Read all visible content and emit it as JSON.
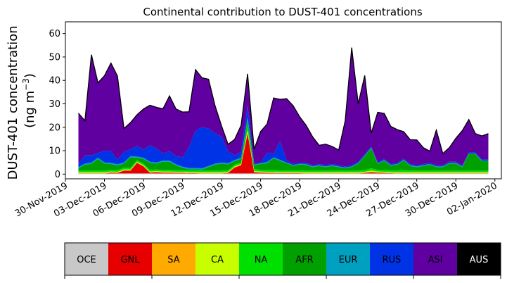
{
  "chart_data": {
    "type": "area",
    "title": "Continental contribution to DUST-401 concentrations",
    "ylabel_line1": "DUST-401 concentration",
    "ylabel_line2": "(ng m",
    "ylabel_unit_sup": "−3",
    "ylabel_line2_end": ")",
    "xlabel": "",
    "ylim": [
      -2,
      65
    ],
    "yticks": [
      0,
      10,
      20,
      30,
      40,
      50,
      60
    ],
    "xlim": [
      "2019-11-30T00:00",
      "2020-01-02T12:00"
    ],
    "xticks": [
      "2019-11-30",
      "2019-12-03",
      "2019-12-06",
      "2019-12-09",
      "2019-12-12",
      "2019-12-15",
      "2019-12-18",
      "2019-12-21",
      "2019-12-24",
      "2019-12-27",
      "2019-12-30",
      "2020-01-02"
    ],
    "xtick_labels": [
      "30-Nov-2019",
      "03-Dec-2019",
      "06-Dec-2019",
      "09-Dec-2019",
      "12-Dec-2019",
      "15-Dec-2019",
      "18-Dec-2019",
      "21-Dec-2019",
      "24-Dec-2019",
      "27-Dec-2019",
      "30-Dec-2019",
      "02-Jan-2020"
    ],
    "grid": false,
    "legend_placement": "bottom colorbar",
    "x": [
      "2019-12-01T00:00",
      "2019-12-01T12:00",
      "2019-12-02T00:00",
      "2019-12-02T12:00",
      "2019-12-03T00:00",
      "2019-12-03T12:00",
      "2019-12-04T00:00",
      "2019-12-04T12:00",
      "2019-12-05T00:00",
      "2019-12-05T12:00",
      "2019-12-06T00:00",
      "2019-12-06T12:00",
      "2019-12-07T00:00",
      "2019-12-07T12:00",
      "2019-12-08T00:00",
      "2019-12-08T12:00",
      "2019-12-09T00:00",
      "2019-12-09T12:00",
      "2019-12-10T00:00",
      "2019-12-10T12:00",
      "2019-12-11T00:00",
      "2019-12-11T12:00",
      "2019-12-12T00:00",
      "2019-12-12T12:00",
      "2019-12-13T00:00",
      "2019-12-13T12:00",
      "2019-12-14T00:00",
      "2019-12-14T12:00",
      "2019-12-15T00:00",
      "2019-12-15T12:00",
      "2019-12-16T00:00",
      "2019-12-16T12:00",
      "2019-12-17T00:00",
      "2019-12-17T12:00",
      "2019-12-18T00:00",
      "2019-12-18T12:00",
      "2019-12-19T00:00",
      "2019-12-19T12:00",
      "2019-12-20T00:00",
      "2019-12-20T12:00",
      "2019-12-21T00:00",
      "2019-12-21T12:00",
      "2019-12-22T00:00",
      "2019-12-22T12:00",
      "2019-12-23T00:00",
      "2019-12-23T12:00",
      "2019-12-24T00:00",
      "2019-12-24T12:00",
      "2019-12-25T00:00",
      "2019-12-25T12:00",
      "2019-12-26T00:00",
      "2019-12-26T12:00",
      "2019-12-27T00:00",
      "2019-12-27T12:00",
      "2019-12-28T00:00",
      "2019-12-28T12:00",
      "2019-12-29T00:00",
      "2019-12-29T12:00",
      "2019-12-30T00:00",
      "2019-12-30T12:00",
      "2019-12-31T00:00",
      "2019-12-31T12:00",
      "2020-01-01T00:00",
      "2020-01-01T12:00"
    ],
    "series": [
      {
        "name": "OCE",
        "color": "#c8c8c8",
        "values": [
          0.3,
          0.3,
          0.3,
          0.3,
          0.3,
          0.3,
          0.3,
          0.3,
          0.3,
          0.3,
          0.3,
          0.3,
          0.3,
          0.3,
          0.3,
          0.3,
          0.3,
          0.3,
          0.3,
          0.3,
          0.3,
          0.3,
          0.3,
          0.3,
          0.3,
          0.3,
          0.3,
          0.3,
          0.3,
          0.3,
          0.3,
          0.3,
          0.3,
          0.3,
          0.3,
          0.3,
          0.3,
          0.3,
          0.3,
          0.3,
          0.3,
          0.3,
          0.3,
          0.3,
          0.3,
          0.3,
          0.3,
          0.3,
          0.3,
          0.3,
          0.3,
          0.3,
          0.3,
          0.3,
          0.3,
          0.3,
          0.3,
          0.3,
          0.3,
          0.3,
          0.3,
          0.3,
          0.3,
          0.3
        ]
      },
      {
        "name": "GNL",
        "color": "#e60000",
        "values": [
          0,
          0,
          0,
          0,
          0,
          0.3,
          0.2,
          1.2,
          1.2,
          4.5,
          3.0,
          0.3,
          0.5,
          0.3,
          0.3,
          0.2,
          0.2,
          0.1,
          0.1,
          0,
          0,
          0,
          0,
          0.2,
          2.5,
          3.5,
          17.0,
          0.5,
          0.3,
          0.2,
          0.2,
          0.1,
          0.1,
          0.1,
          0.1,
          0,
          0,
          0,
          0,
          0,
          0,
          0,
          0,
          0,
          0.2,
          0.5,
          0.3,
          0.2,
          0.1,
          0,
          0,
          0,
          0,
          0,
          0,
          0,
          0,
          0,
          0,
          0,
          0,
          0,
          0,
          0
        ]
      },
      {
        "name": "SA",
        "color": "#ffaa00",
        "values": [
          0.2,
          0.2,
          0.2,
          0.2,
          0.2,
          0.2,
          0.2,
          0.2,
          0.2,
          0.2,
          0.2,
          0.2,
          0.2,
          0.2,
          0.2,
          0.2,
          0.2,
          0.2,
          0.2,
          0.2,
          0.2,
          0.2,
          0.2,
          0.2,
          0.2,
          0.2,
          0.5,
          0.2,
          0.2,
          0.2,
          0.2,
          0.2,
          0.2,
          0.2,
          0.2,
          0.2,
          0.2,
          0.2,
          0.2,
          0.2,
          0.2,
          0.2,
          0.2,
          0.2,
          0.2,
          0.2,
          0.2,
          0.2,
          0.2,
          0.2,
          0.2,
          0.2,
          0.2,
          0.2,
          0.2,
          0.2,
          0.2,
          0.2,
          0.2,
          0.2,
          0.2,
          0.2,
          0.2,
          0.2
        ]
      },
      {
        "name": "CA",
        "color": "#c8ff00",
        "values": [
          0.3,
          0.3,
          0.3,
          0.3,
          0.3,
          0.3,
          0.3,
          0.3,
          0.3,
          0.3,
          0.3,
          0.3,
          0.3,
          0.3,
          0.3,
          0.3,
          0.3,
          0.3,
          0.3,
          0.3,
          0.3,
          0.3,
          0.3,
          0.3,
          0.3,
          0.3,
          1.0,
          0.3,
          0.3,
          0.3,
          0.3,
          0.3,
          0.3,
          0.3,
          0.3,
          0.3,
          0.3,
          0.3,
          0.3,
          0.3,
          0.3,
          0.3,
          0.3,
          0.3,
          0.3,
          0.5,
          0.3,
          0.3,
          0.3,
          0.3,
          0.3,
          0.3,
          0.3,
          0.3,
          0.3,
          0.3,
          0.3,
          0.3,
          0.3,
          0.3,
          0.3,
          0.3,
          0.3,
          0.3
        ]
      },
      {
        "name": "NA",
        "color": "#00e000",
        "values": [
          0.7,
          0.7,
          0.7,
          0.7,
          0.7,
          0.7,
          0.7,
          0.7,
          0.7,
          0.7,
          0.7,
          0.7,
          0.7,
          0.7,
          0.7,
          0.7,
          0.7,
          0.7,
          0.7,
          0.7,
          0.7,
          0.7,
          0.7,
          0.7,
          0.7,
          0.7,
          2.0,
          1.0,
          0.7,
          0.7,
          0.7,
          0.7,
          0.7,
          0.7,
          0.7,
          0.7,
          0.7,
          0.7,
          0.7,
          0.7,
          0.7,
          0.7,
          0.7,
          0.7,
          0.7,
          1.0,
          0.7,
          0.7,
          0.7,
          0.7,
          1.0,
          0.7,
          0.7,
          0.7,
          0.7,
          0.7,
          0.7,
          0.7,
          0.7,
          0.7,
          0.7,
          0.7,
          0.7,
          0.7
        ]
      },
      {
        "name": "AFR",
        "color": "#00a000",
        "values": [
          1.0,
          2.5,
          3.0,
          5.0,
          3.0,
          2.5,
          2.0,
          1.8,
          4.5,
          1.0,
          2.0,
          3.0,
          2.5,
          3.5,
          3.5,
          2.0,
          1.0,
          0.5,
          0.5,
          0.5,
          1.5,
          2.5,
          3.0,
          2.5,
          1.5,
          1.5,
          2.0,
          1.5,
          2.5,
          3.0,
          5.0,
          4.0,
          3.0,
          2.0,
          2.5,
          2.5,
          1.5,
          2.0,
          1.5,
          2.0,
          1.5,
          1.0,
          1.5,
          3.0,
          6.0,
          8.5,
          2.5,
          4.0,
          2.0,
          2.5,
          4.0,
          2.0,
          1.5,
          2.0,
          2.5,
          1.5,
          1.5,
          3.0,
          3.0,
          1.5,
          7.0,
          7.0,
          4.0,
          4.0
        ]
      },
      {
        "name": "EUR",
        "color": "#00a0c0",
        "values": [
          0.5,
          0.5,
          0.5,
          0.5,
          0.5,
          0.5,
          0.5,
          0.5,
          0.5,
          0.5,
          0.5,
          0.5,
          0.5,
          0.5,
          0.5,
          0.5,
          0.5,
          0.5,
          0.5,
          0.5,
          0.5,
          0.5,
          0.5,
          0.5,
          0.5,
          0.5,
          1.5,
          0.3,
          0.3,
          0.5,
          0.5,
          0.5,
          0.3,
          0.3,
          0.3,
          0.3,
          0.3,
          0.3,
          0.3,
          0.3,
          0.3,
          0.3,
          0.3,
          0.3,
          0.3,
          0.3,
          0.3,
          0.3,
          0.3,
          0.3,
          0.3,
          0.3,
          0.3,
          0.3,
          0.3,
          0.3,
          0.3,
          0.3,
          0.3,
          0.3,
          0.3,
          0.3,
          0.3,
          0.3
        ]
      },
      {
        "name": "RUS",
        "color": "#0032e6",
        "values": [
          1.5,
          3.5,
          3.0,
          2.0,
          5.0,
          5.0,
          2.0,
          4.5,
          3.0,
          4.5,
          3.5,
          7.0,
          6.0,
          3.0,
          4.0,
          3.5,
          4.0,
          9.0,
          16.0,
          17.5,
          16.0,
          13.0,
          11.0,
          5.0,
          2.0,
          2.5,
          5.0,
          0.5,
          0.3,
          4.0,
          1.5,
          8.0,
          0.8,
          0.5,
          0.5,
          0.5,
          0.5,
          0.5,
          0.5,
          0.5,
          0.5,
          0.5,
          0.5,
          0.5,
          0.5,
          0.5,
          0.5,
          0.5,
          0.5,
          0.5,
          0.5,
          0.5,
          0.5,
          0.5,
          0.5,
          0.5,
          0.5,
          0.5,
          0.5,
          0.5,
          0.5,
          0.5,
          0.5,
          0.5
        ]
      },
      {
        "name": "ASI",
        "color": "#6000a0",
        "values": [
          21.5,
          14.8,
          43.0,
          30.0,
          32.0,
          37.6,
          35.7,
          10.0,
          11.3,
          13.3,
          17.3,
          17.1,
          17.5,
          19.1,
          23.6,
          20.1,
          19.3,
          15.0,
          26.0,
          21.1,
          21.0,
          11.7,
          4.6,
          3.0,
          6.8,
          11.3,
          13.5,
          6.0,
          13.3,
          12.2,
          23.8,
          17.8,
          26.5,
          24.8,
          19.6,
          16.0,
          12.1,
          8.0,
          9.0,
          7.5,
          6.5,
          19.5,
          50.2,
          24.7,
          33.6,
          5.7,
          21.3,
          19.4,
          16.0,
          14.2,
          11.5,
          10.4,
          10.8,
          7.0,
          5.0,
          15.0,
          5.0,
          6.0,
          10.0,
          14.8,
          14.0,
          8.0,
          10.0,
          11.0
        ]
      },
      {
        "name": "AUS",
        "color": "#000000",
        "values": [
          0,
          0,
          0,
          0,
          0,
          0,
          0,
          0,
          0,
          0,
          0,
          0,
          0,
          0,
          0,
          0,
          0,
          0,
          0,
          0,
          0,
          0,
          0,
          0,
          0,
          0,
          0,
          0,
          0,
          0,
          0,
          0,
          0,
          0,
          0,
          0,
          0,
          0,
          0,
          0,
          0,
          0,
          0,
          0,
          0,
          0,
          0,
          0,
          0,
          0,
          0,
          0,
          0,
          0,
          0,
          0,
          0,
          0,
          0,
          0,
          0,
          0,
          0,
          0
        ]
      }
    ],
    "total_line_color": "#000000"
  },
  "legend": {
    "items": [
      {
        "label": "OCE",
        "color": "#c8c8c8",
        "text_color": "#000000"
      },
      {
        "label": "GNL",
        "color": "#e60000",
        "text_color": "#000000"
      },
      {
        "label": "SA",
        "color": "#ffaa00",
        "text_color": "#000000"
      },
      {
        "label": "CA",
        "color": "#c8ff00",
        "text_color": "#000000"
      },
      {
        "label": "NA",
        "color": "#00e000",
        "text_color": "#000000"
      },
      {
        "label": "AFR",
        "color": "#00a000",
        "text_color": "#000000"
      },
      {
        "label": "EUR",
        "color": "#00a0c0",
        "text_color": "#000000"
      },
      {
        "label": "RUS",
        "color": "#0032e6",
        "text_color": "#000000"
      },
      {
        "label": "ASI",
        "color": "#6000a0",
        "text_color": "#000000"
      },
      {
        "label": "AUS",
        "color": "#000000",
        "text_color": "#ffffff"
      }
    ]
  }
}
